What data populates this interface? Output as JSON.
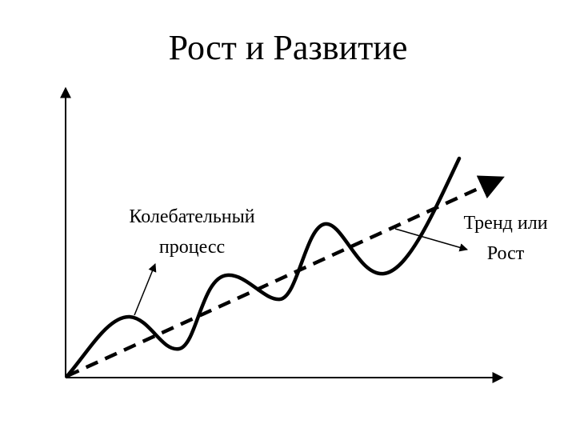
{
  "title": "Рост и Развитие",
  "annotations": {
    "oscillation": {
      "line1": "Колебательный",
      "line2": "процесс"
    },
    "trend": {
      "line1": "Тренд или",
      "line2": "Рост"
    }
  },
  "colors": {
    "stroke": "#000000",
    "background": "#ffffff"
  }
}
